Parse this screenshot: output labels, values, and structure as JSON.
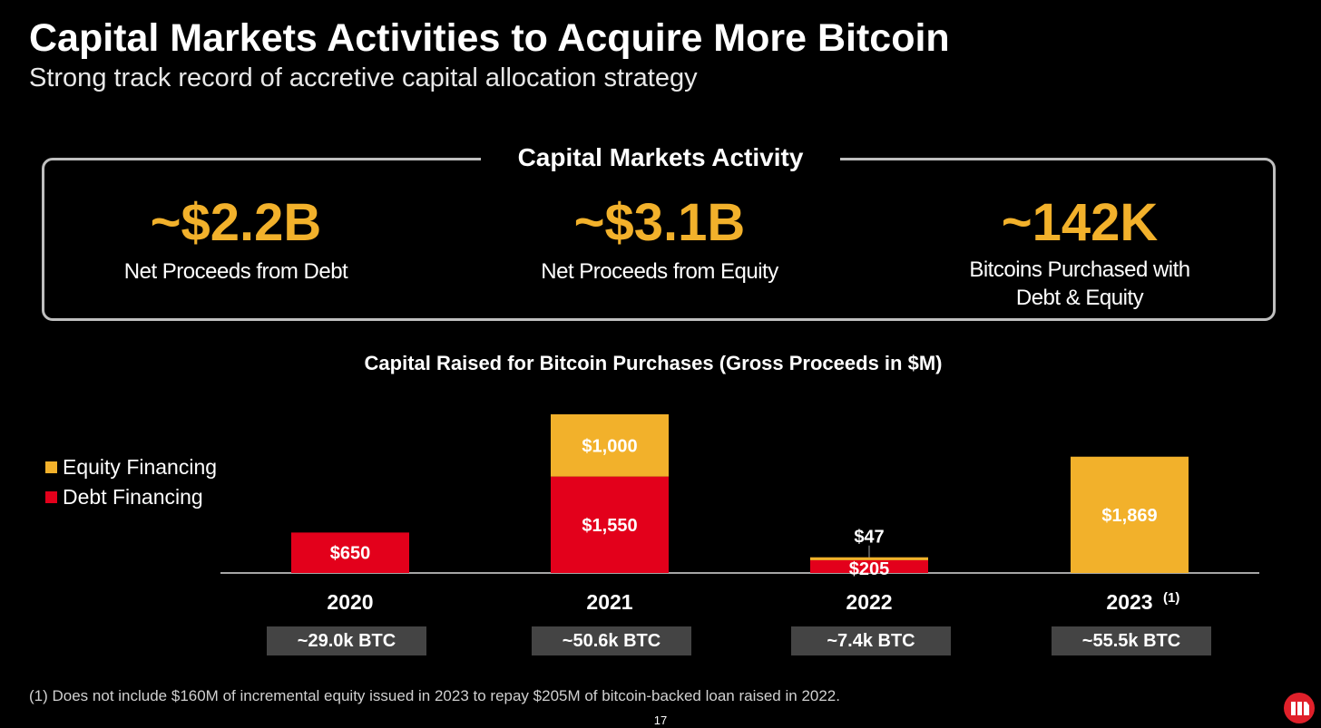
{
  "header": {
    "title": "Capital Markets Activities to Acquire More Bitcoin",
    "subtitle": "Strong track record of accretive capital allocation strategy"
  },
  "activity": {
    "title": "Capital Markets Activity",
    "kpis": [
      {
        "value": "~$2.2B",
        "label": "Net Proceeds from Debt"
      },
      {
        "value": "~$3.1B",
        "label": "Net Proceeds from Equity"
      },
      {
        "value": "~142K",
        "label": "Bitcoins Purchased with",
        "label2": "Debt & Equity"
      }
    ]
  },
  "colors": {
    "equity": "#f2b12b",
    "debt": "#e3001b"
  },
  "chart_data": {
    "type": "bar",
    "stacked": true,
    "title": "Capital Raised for Bitcoin Purchases (Gross Proceeds in $M)",
    "categories": [
      "2020",
      "2021",
      "2022",
      "2023"
    ],
    "category_notes": [
      "",
      "",
      "",
      "(1)"
    ],
    "series": [
      {
        "name": "Debt Financing",
        "values": [
          650,
          1550,
          205,
          0
        ],
        "labels": [
          "$650",
          "$1,550",
          "$205",
          ""
        ]
      },
      {
        "name": "Equity Financing",
        "values": [
          0,
          1000,
          47,
          1869
        ],
        "labels": [
          "",
          "$1,000",
          "$47",
          "$1,869"
        ]
      }
    ],
    "legend": [
      "Equity Financing",
      "Debt Financing"
    ],
    "legend_position": "left",
    "ylim": [
      0,
      2550
    ],
    "btc": [
      "~29.0k BTC",
      "~50.6k BTC",
      "~7.4k BTC",
      "~55.5k BTC"
    ]
  },
  "footer": {
    "footnote": "(1) Does not include $160M of incremental equity issued in 2023 to repay $205M of bitcoin-backed loan raised in 2022.",
    "page": "17"
  }
}
